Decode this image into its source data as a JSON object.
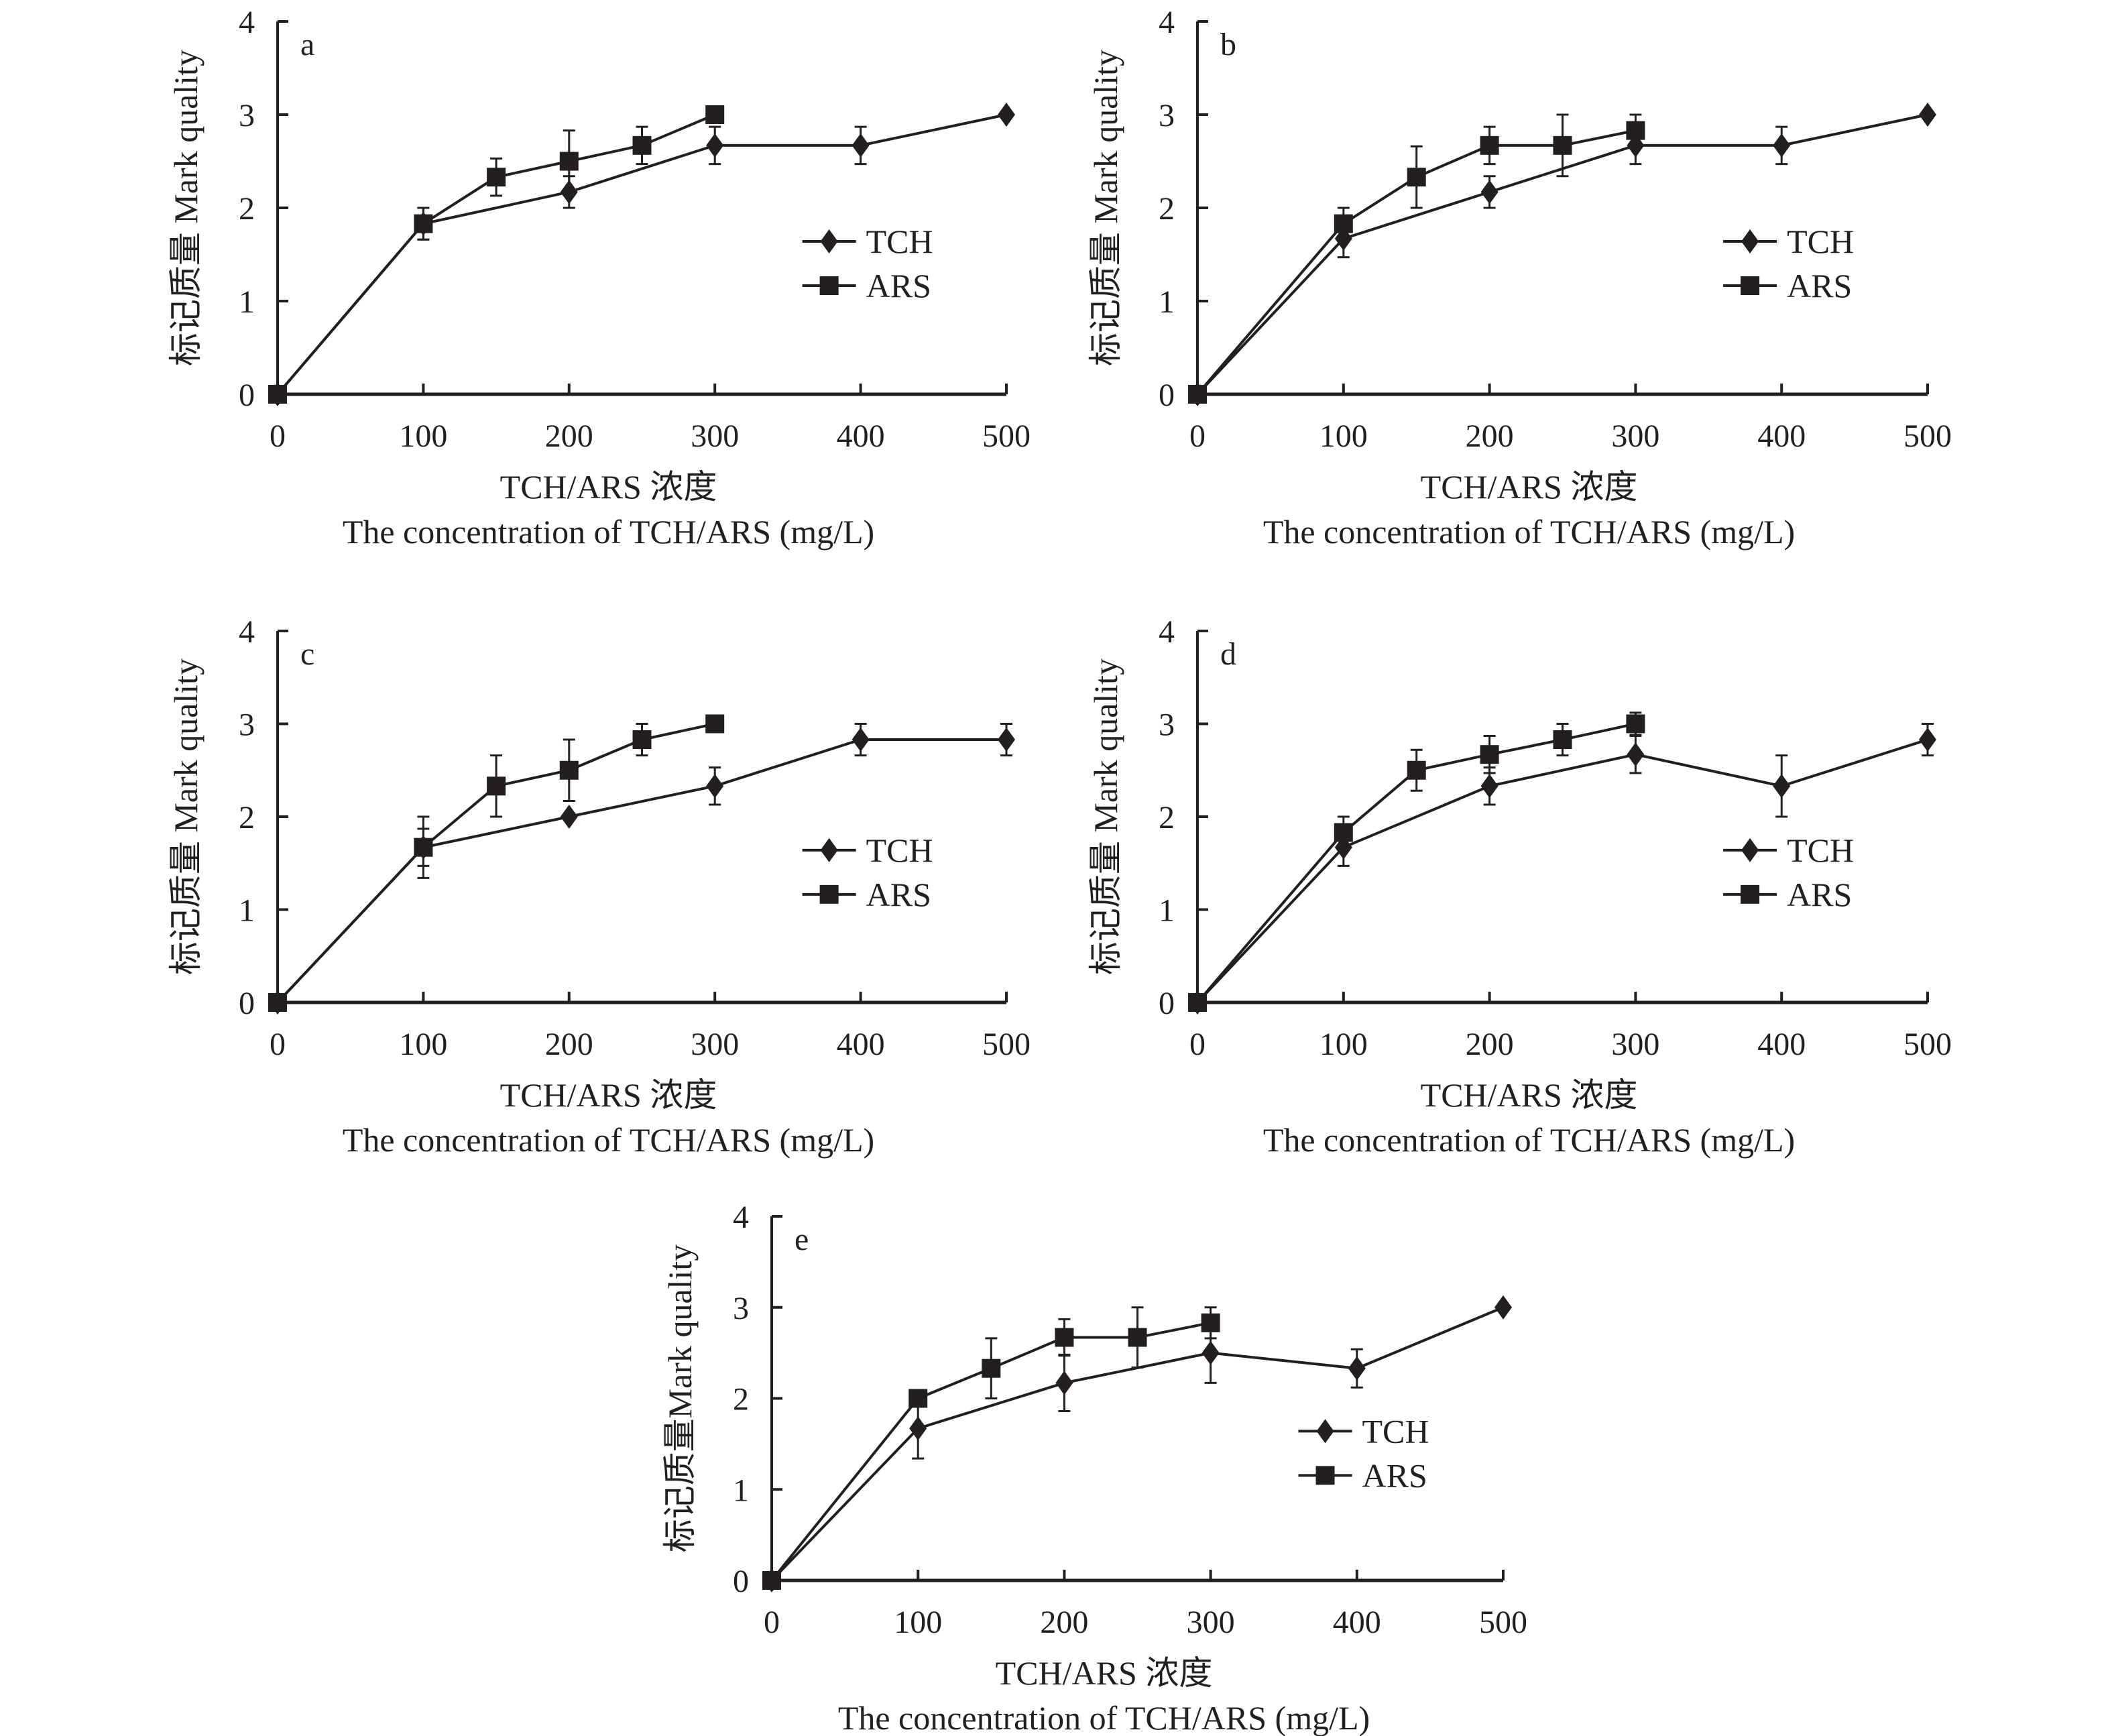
{
  "chart_data": [
    {
      "id": "a",
      "type": "line",
      "title": "a",
      "xlabel": [
        "TCH/ARS 浓度",
        "The concentration of TCH/ARS (mg/L)"
      ],
      "ylabel": "标记质量 Mark quality",
      "xlim": [
        0,
        500
      ],
      "ylim": [
        0,
        4
      ],
      "xticks": [
        0,
        100,
        200,
        300,
        400,
        500
      ],
      "yticks": [
        0,
        1,
        2,
        3,
        4
      ],
      "grid": false,
      "legend_position": "right-middle",
      "series": [
        {
          "name": "TCH",
          "marker": "diamond",
          "x": [
            0,
            100,
            200,
            300,
            400,
            500
          ],
          "values": [
            0,
            1.83,
            2.17,
            2.67,
            2.67,
            3.0
          ],
          "error": [
            0,
            0.17,
            0.17,
            0.2,
            0.2,
            0
          ]
        },
        {
          "name": "ARS",
          "marker": "square",
          "x": [
            0,
            100,
            150,
            200,
            250,
            300
          ],
          "values": [
            0,
            1.83,
            2.33,
            2.5,
            2.67,
            3.0
          ],
          "error": [
            0,
            0.17,
            0.2,
            0.33,
            0.2,
            0
          ]
        }
      ]
    },
    {
      "id": "b",
      "type": "line",
      "title": "b",
      "xlabel": [
        "TCH/ARS 浓度",
        "The concentration of TCH/ARS (mg/L)"
      ],
      "ylabel": "标记质量 Mark quality",
      "xlim": [
        0,
        500
      ],
      "ylim": [
        0,
        4
      ],
      "xticks": [
        0,
        100,
        200,
        300,
        400,
        500
      ],
      "yticks": [
        0,
        1,
        2,
        3,
        4
      ],
      "grid": false,
      "legend_position": "right-middle",
      "series": [
        {
          "name": "TCH",
          "marker": "diamond",
          "x": [
            0,
            100,
            200,
            300,
            400,
            500
          ],
          "values": [
            0,
            1.67,
            2.17,
            2.67,
            2.67,
            3.0
          ],
          "error": [
            0,
            0.2,
            0.17,
            0.2,
            0.2,
            0
          ]
        },
        {
          "name": "ARS",
          "marker": "square",
          "x": [
            0,
            100,
            150,
            200,
            250,
            300
          ],
          "values": [
            0,
            1.83,
            2.33,
            2.67,
            2.67,
            2.83
          ],
          "error": [
            0,
            0.17,
            0.33,
            0.2,
            0.33,
            0.17
          ]
        }
      ]
    },
    {
      "id": "c",
      "type": "line",
      "title": "c",
      "xlabel": [
        "TCH/ARS 浓度",
        "The concentration of TCH/ARS (mg/L)"
      ],
      "ylabel": "标记质量 Mark quality",
      "xlim": [
        0,
        500
      ],
      "ylim": [
        0,
        4
      ],
      "xticks": [
        0,
        100,
        200,
        300,
        400,
        500
      ],
      "yticks": [
        0,
        1,
        2,
        3,
        4
      ],
      "grid": false,
      "legend_position": "right-middle",
      "series": [
        {
          "name": "TCH",
          "marker": "diamond",
          "x": [
            0,
            100,
            200,
            300,
            400,
            500
          ],
          "values": [
            0,
            1.67,
            2.0,
            2.33,
            2.83,
            2.83
          ],
          "error": [
            0,
            0.2,
            0,
            0.2,
            0.17,
            0.17
          ]
        },
        {
          "name": "ARS",
          "marker": "square",
          "x": [
            0,
            100,
            150,
            200,
            250,
            300
          ],
          "values": [
            0,
            1.67,
            2.33,
            2.5,
            2.83,
            3.0
          ],
          "error": [
            0,
            0.33,
            0.33,
            0.33,
            0.17,
            0
          ]
        }
      ]
    },
    {
      "id": "d",
      "type": "line",
      "title": "d",
      "xlabel": [
        "TCH/ARS 浓度",
        "The concentration of TCH/ARS (mg/L)"
      ],
      "ylabel": "标记质量 Mark quality",
      "xlim": [
        0,
        500
      ],
      "ylim": [
        0,
        4
      ],
      "xticks": [
        0,
        100,
        200,
        300,
        400,
        500
      ],
      "yticks": [
        0,
        1,
        2,
        3,
        4
      ],
      "grid": false,
      "legend_position": "right-middle",
      "series": [
        {
          "name": "TCH",
          "marker": "diamond",
          "x": [
            0,
            100,
            200,
            300,
            400,
            500
          ],
          "values": [
            0,
            1.67,
            2.33,
            2.67,
            2.33,
            2.83
          ],
          "error": [
            0,
            0.2,
            0.2,
            0.2,
            0.33,
            0.17
          ]
        },
        {
          "name": "ARS",
          "marker": "square",
          "x": [
            0,
            100,
            150,
            200,
            250,
            300
          ],
          "values": [
            0,
            1.83,
            2.5,
            2.67,
            2.83,
            3.0
          ],
          "error": [
            0,
            0.17,
            0.22,
            0.2,
            0.17,
            0.12
          ]
        }
      ]
    },
    {
      "id": "e",
      "type": "line",
      "title": "e",
      "xlabel": [
        "TCH/ARS 浓度",
        "The concentration of TCH/ARS (mg/L)"
      ],
      "ylabel": "标记质量Mark quality",
      "xlim": [
        0,
        500
      ],
      "ylim": [
        0,
        4
      ],
      "xticks": [
        0,
        100,
        200,
        300,
        400,
        500
      ],
      "yticks": [
        0,
        1,
        2,
        3,
        4
      ],
      "grid": false,
      "legend_position": "right-middle",
      "series": [
        {
          "name": "TCH",
          "marker": "diamond",
          "x": [
            0,
            100,
            200,
            300,
            400,
            500
          ],
          "values": [
            0,
            1.67,
            2.17,
            2.5,
            2.33,
            3.0
          ],
          "error": [
            0,
            0.33,
            0.31,
            0.33,
            0.21,
            0
          ]
        },
        {
          "name": "ARS",
          "marker": "square",
          "x": [
            0,
            100,
            150,
            200,
            250,
            300
          ],
          "values": [
            0,
            2.0,
            2.33,
            2.67,
            2.67,
            2.83
          ],
          "error": [
            0,
            0,
            0.33,
            0.2,
            0.33,
            0.17
          ]
        }
      ]
    }
  ]
}
